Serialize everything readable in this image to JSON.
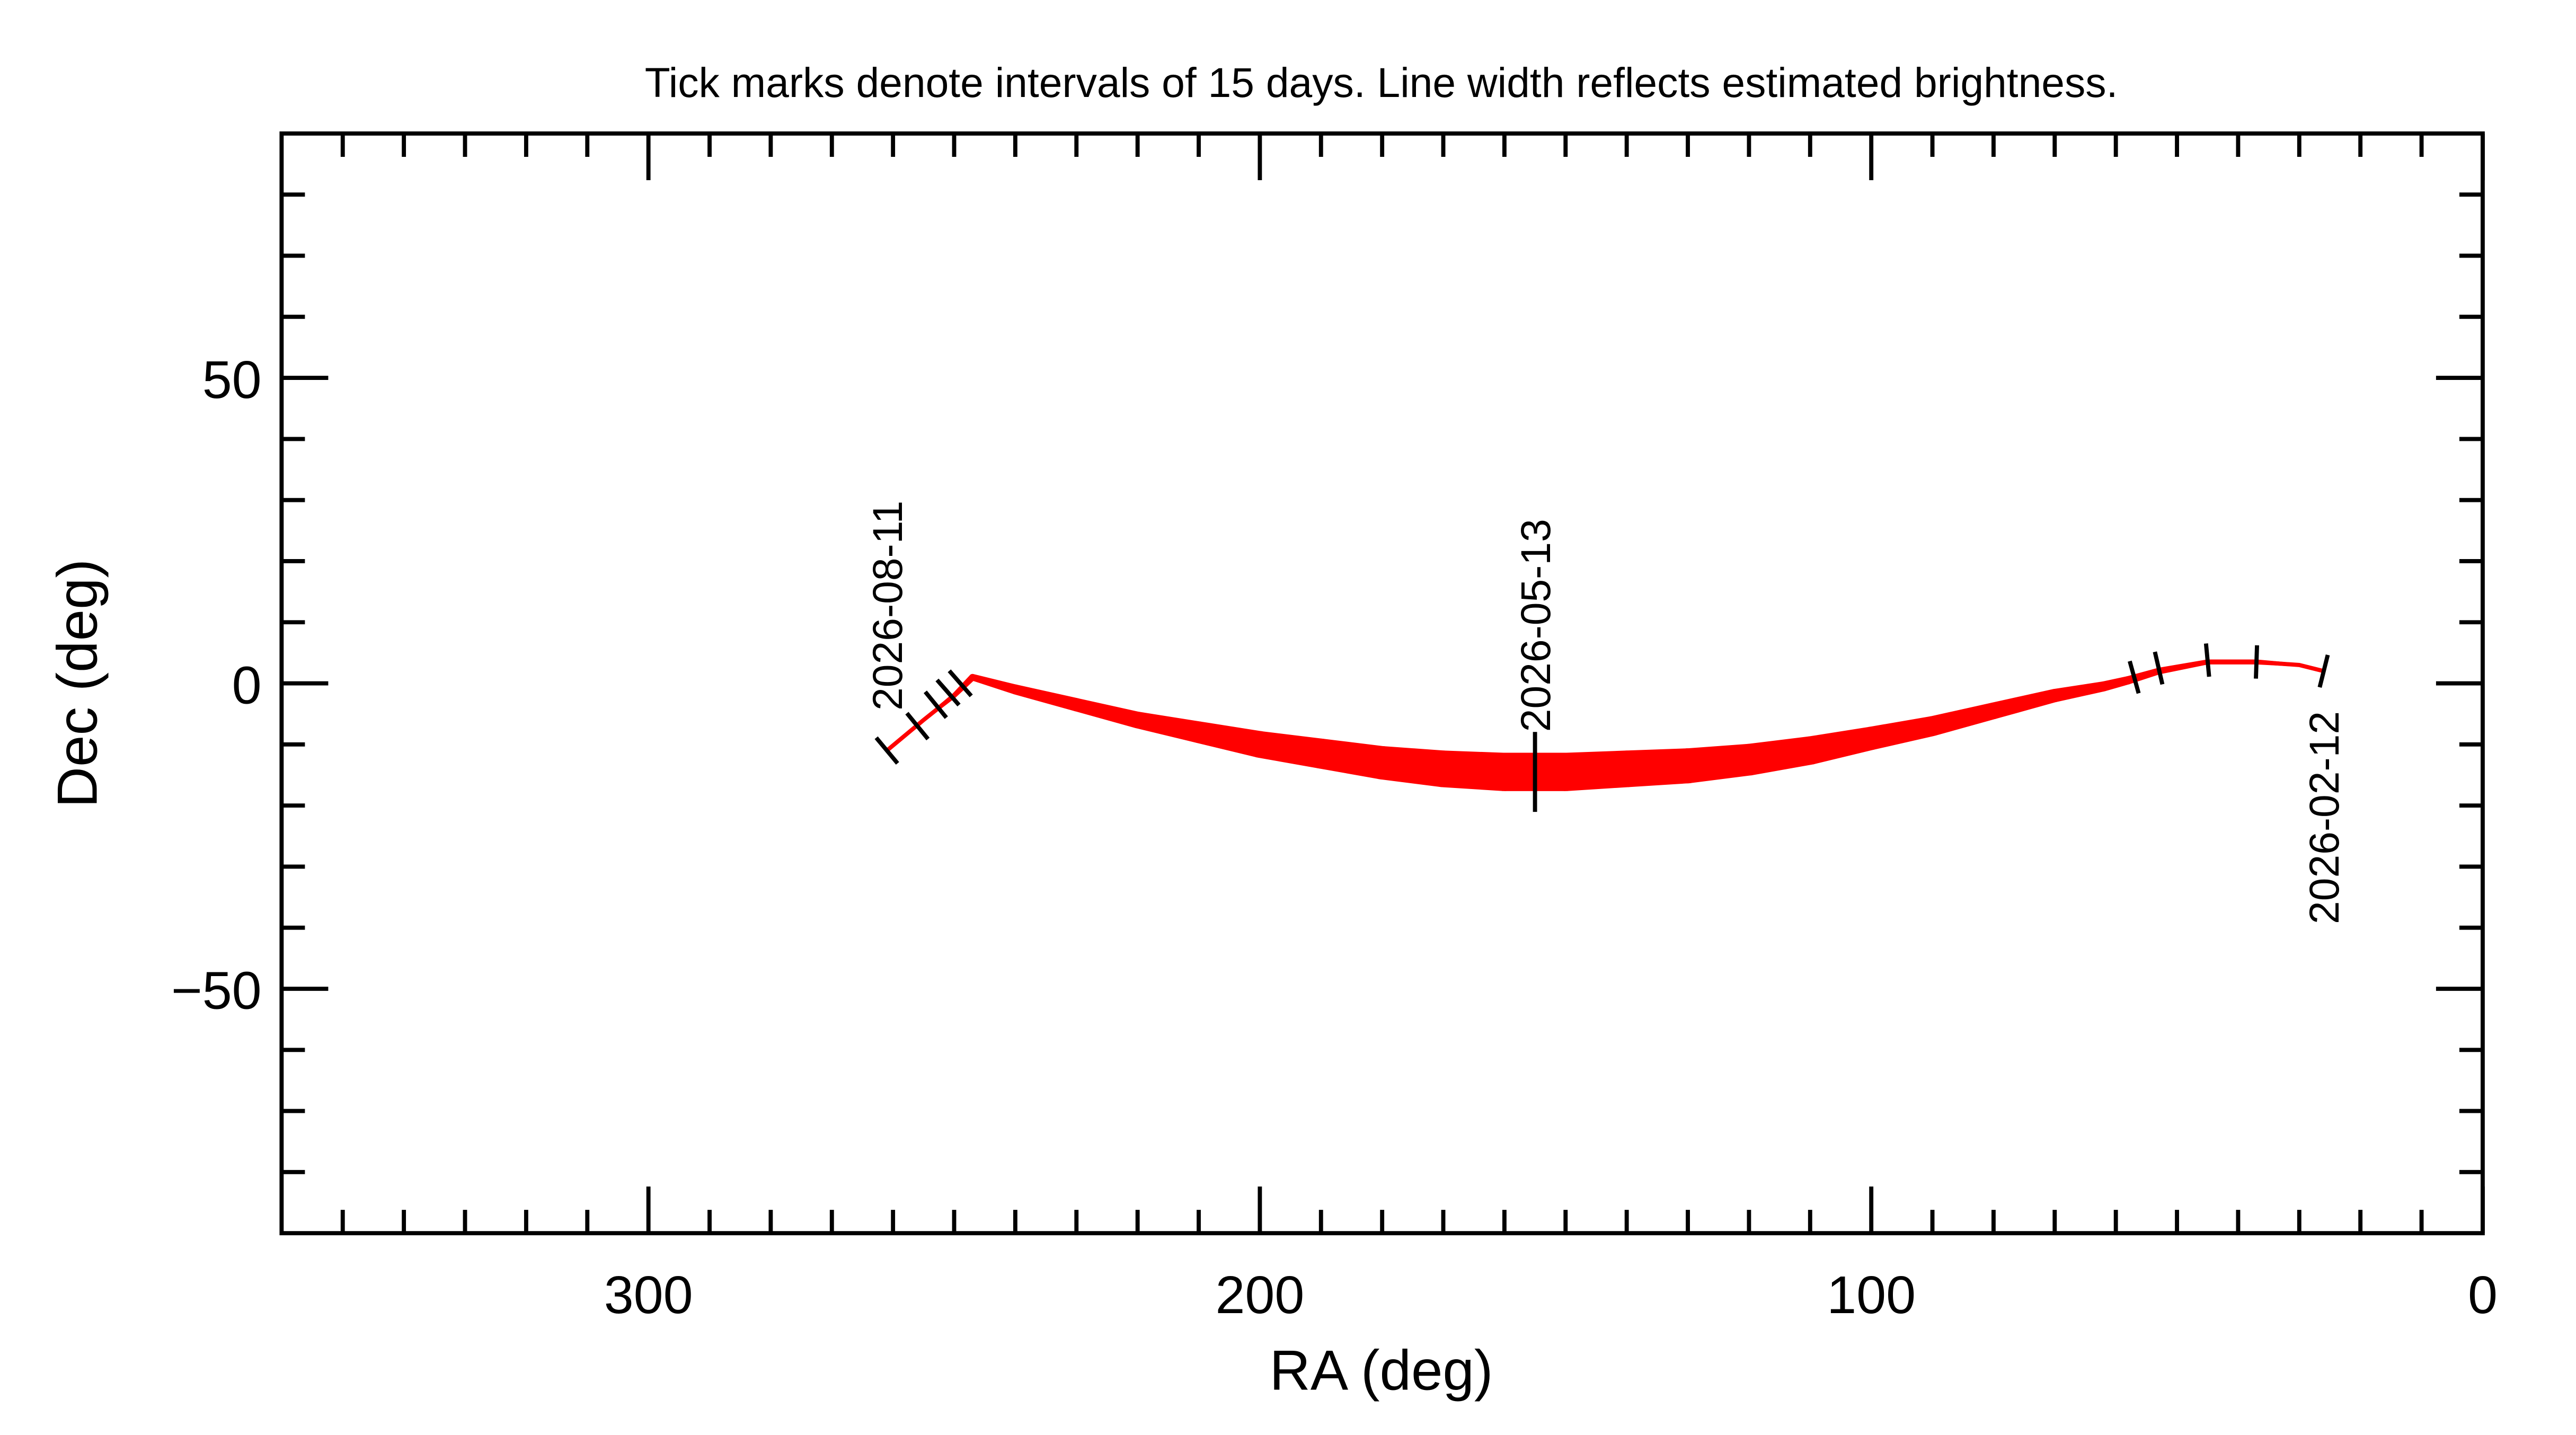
{
  "chart_data": {
    "type": "line",
    "title": "Tick marks denote intervals of 15 days.  Line width reflects estimated brightness.",
    "xlabel": "RA (deg)",
    "ylabel": "Dec (deg)",
    "xlim": [
      360,
      0
    ],
    "ylim": [
      -90,
      90
    ],
    "xticks": [
      300,
      200,
      100,
      0
    ],
    "yticks": [
      {
        "value": 50,
        "label": "50"
      },
      {
        "value": 0,
        "label": "0"
      },
      {
        "value": -50,
        "label": "−50"
      }
    ],
    "xminor_ticks": [
      350,
      340,
      330,
      320,
      310,
      290,
      280,
      270,
      260,
      250,
      240,
      230,
      220,
      210,
      190,
      180,
      170,
      160,
      150,
      140,
      130,
      120,
      110,
      90,
      80,
      70,
      60,
      50,
      40,
      30,
      20,
      10
    ],
    "yminor_ticks": [
      80,
      70,
      60,
      40,
      30,
      20,
      10,
      -10,
      -20,
      -30,
      -40,
      -60,
      -70,
      -80
    ],
    "series": [
      {
        "color": "#ff0000",
        "x": [
          26,
          30,
          37,
          45,
          53,
          58,
          62,
          70,
          80,
          90,
          100,
          110,
          120,
          130,
          140,
          150,
          155,
          160,
          170,
          180,
          190,
          200,
          210,
          220,
          230,
          240,
          247,
          250,
          255,
          261
        ],
        "y": [
          2,
          3,
          3.5,
          3.5,
          2,
          0.5,
          -0.5,
          -2,
          -4.5,
          -7,
          -9,
          -11,
          -12.5,
          -13.5,
          -14,
          -14.5,
          -14.5,
          -14.5,
          -14,
          -13,
          -11.5,
          -10,
          -8,
          -6,
          -3.5,
          -1,
          1,
          -2,
          -6,
          -11
        ],
        "line_width": [
          2,
          2,
          3,
          3,
          4,
          5,
          6,
          8,
          10,
          12,
          14,
          17,
          19,
          21,
          22,
          23,
          23,
          23,
          22,
          20,
          18,
          16,
          13,
          10,
          8,
          6,
          4,
          3,
          2,
          2
        ]
      }
    ],
    "tick_marks": {
      "x": [
        26,
        37,
        45,
        53,
        57,
        155,
        249,
        251,
        253,
        256,
        261
      ],
      "y": [
        2,
        3.5,
        3.8,
        2.5,
        1,
        -14.5,
        0,
        -1.5,
        -3.5,
        -7,
        -11
      ]
    },
    "annotations": [
      {
        "text": "2026-02-12",
        "x": 26,
        "y": 2
      },
      {
        "text": "2026-05-13",
        "x": 155,
        "y": -14.5
      },
      {
        "text": "2026-08-11",
        "x": 261,
        "y": -11
      }
    ]
  }
}
